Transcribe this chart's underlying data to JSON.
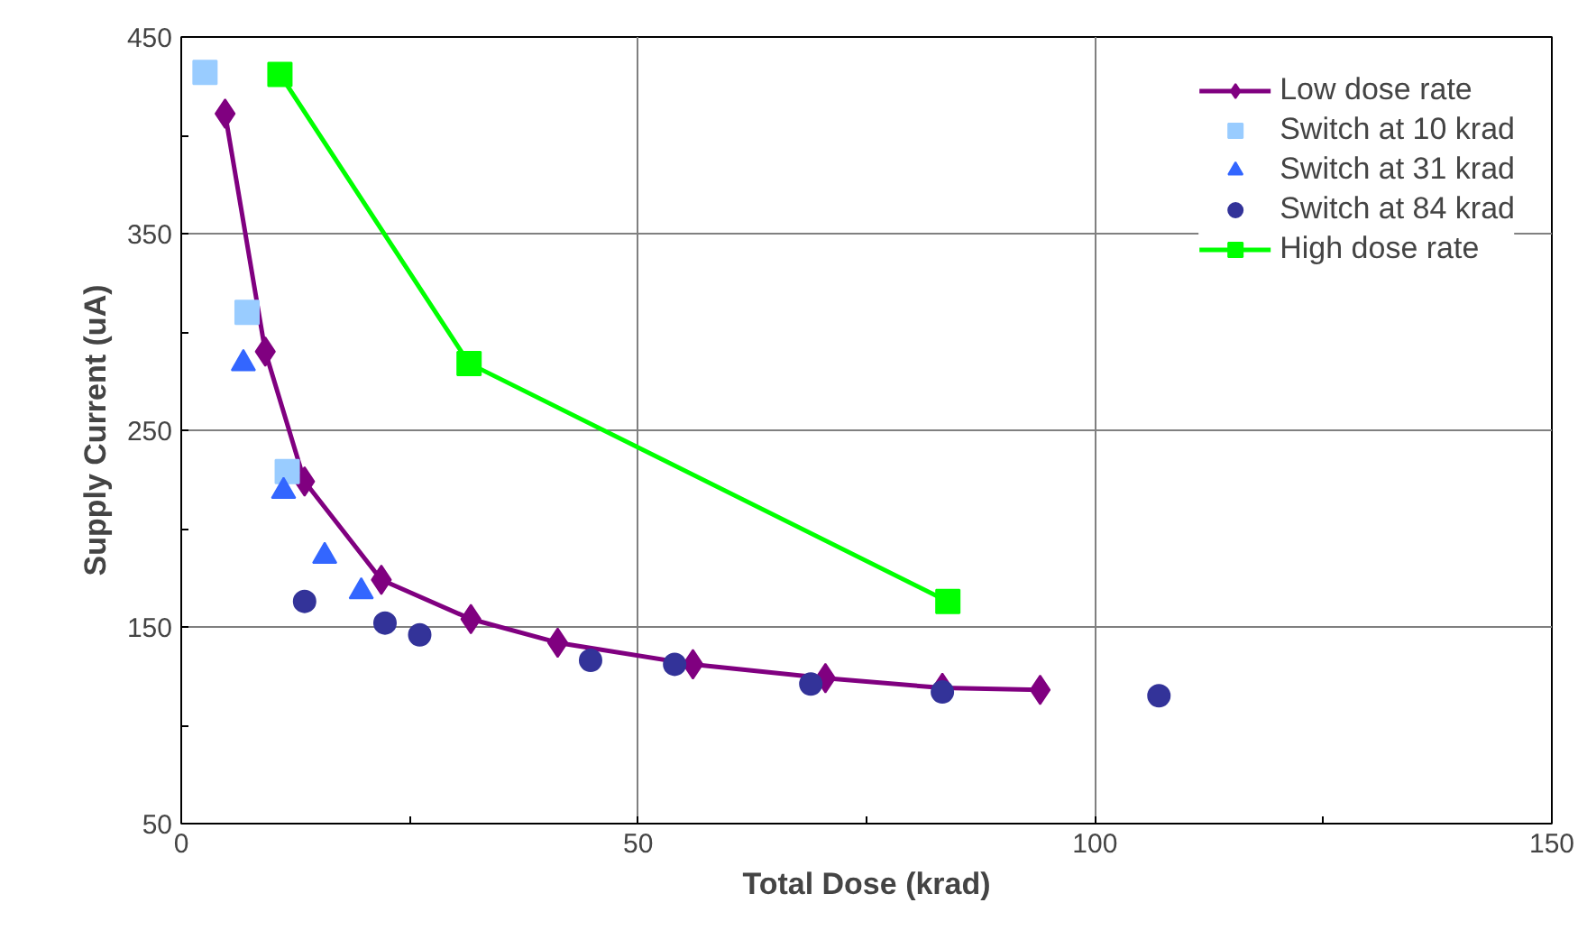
{
  "chart_data": {
    "type": "scatter",
    "xlabel": "Total Dose (krad)",
    "ylabel": "Supply Current (uA)",
    "xlim": [
      0,
      150
    ],
    "ylim": [
      50,
      450
    ],
    "xticks": [
      0,
      {
        "value": 25,
        "label": null
      },
      50,
      {
        "value": 75,
        "label": null
      },
      100,
      {
        "value": 125,
        "label": null
      },
      150
    ],
    "yticks": [
      50,
      {
        "value": 100,
        "label": null
      },
      150,
      {
        "value": 200,
        "label": null
      },
      250,
      {
        "value": 300,
        "label": null
      },
      350,
      {
        "value": 400,
        "label": null
      },
      450
    ],
    "grid": true,
    "legend": "top right",
    "series": [
      {
        "name": "Low dose rate",
        "type": "line",
        "marker": "diamond",
        "color": "#800080",
        "x": [
          4.8,
          9.2,
          13.5,
          21.9,
          31.7,
          41.2,
          56.0,
          70.5,
          83.3,
          94.0
        ],
        "values": [
          411,
          290,
          224,
          174,
          154,
          142,
          131,
          124,
          119,
          118
        ]
      },
      {
        "name": "Switch at 10 krad",
        "marker": "square",
        "color": "#99ccff",
        "x": [
          2.6,
          7.2,
          11.6
        ],
        "values": [
          432,
          310,
          229
        ]
      },
      {
        "name": "Switch at 31 krad",
        "marker": "triangle",
        "color": "#3366ff",
        "x": [
          6.8,
          11.2,
          15.7,
          19.7
        ],
        "values": [
          284,
          219,
          186,
          168
        ]
      },
      {
        "name": "Switch at 84 krad",
        "marker": "circle",
        "color": "#333399",
        "x": [
          13.5,
          22.3,
          26.1,
          44.8,
          54.0,
          68.9,
          83.3,
          107.0
        ],
        "values": [
          163,
          152,
          146,
          133,
          131,
          121,
          117,
          115
        ]
      },
      {
        "name": "High dose rate",
        "type": "line",
        "marker": "square",
        "color": "#00ff00",
        "x": [
          10.8,
          31.5,
          83.9
        ],
        "values": [
          431,
          284,
          163
        ]
      }
    ]
  }
}
